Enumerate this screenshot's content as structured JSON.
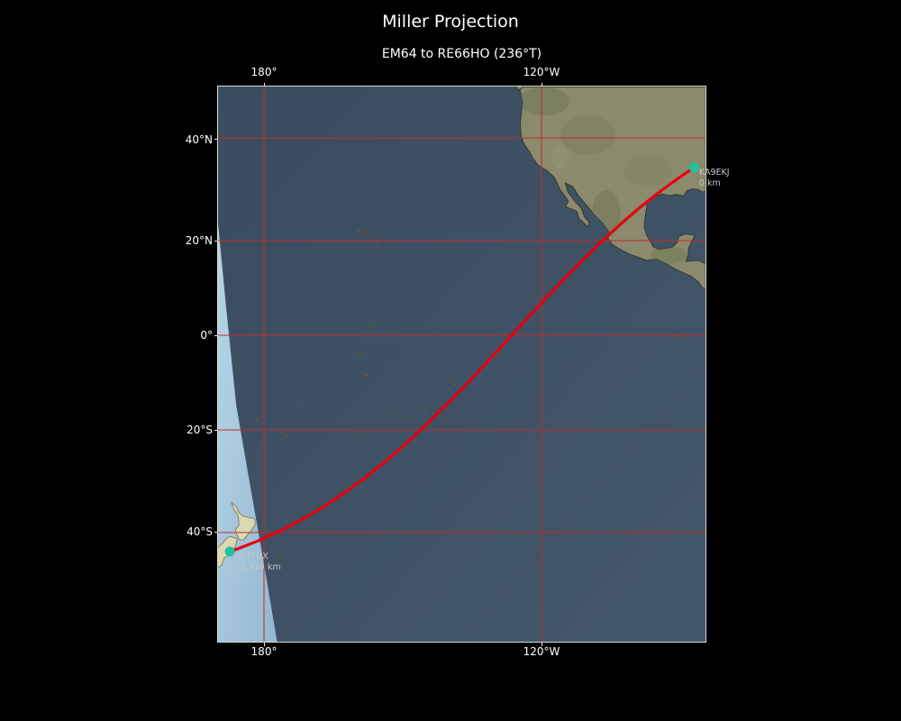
{
  "figure": {
    "title": "Miller Projection",
    "subtitle": "EM64 to RE66HO (236°T)"
  },
  "chart_data": {
    "type": "map",
    "projection": "Miller",
    "extent_lon_deg": [
      170.1,
      -84.5
    ],
    "extent_lat_deg": [
      -58.3,
      48.9
    ],
    "grid_lons": [
      -180,
      -120
    ],
    "grid_lats": [
      40,
      20,
      0,
      -20,
      -40
    ],
    "xtick_labels": [
      "180°",
      "120°W"
    ],
    "ytick_labels": [
      "40°N",
      "20°N",
      "0°",
      "20°S",
      "40°S"
    ],
    "route": {
      "origin": {
        "callsign": "KA9EKJ",
        "distance_label": "0 km",
        "lat": 34.5,
        "lon": -87.0
      },
      "destination": {
        "callsign": "ZL3TUX",
        "distance_label": "13,310 km",
        "lat": -43.4,
        "lon": 172.62
      }
    },
    "basemap": {
      "terminator_day_edge": [
        [
          23.1,
          170.1
        ],
        [
          4.2,
          172.0
        ],
        [
          -14.9,
          174.0
        ],
        [
          -29.6,
          176.7
        ],
        [
          -44.7,
          179.8
        ],
        [
          -58.3,
          -177.1
        ]
      ],
      "land_night": {
        "north_america": [
          [
            48.9,
            -84.5
          ],
          [
            48.9,
            -124.8
          ],
          [
            46.3,
            -124.1
          ],
          [
            42.8,
            -124.6
          ],
          [
            40.3,
            -124.4
          ],
          [
            38.9,
            -123.8
          ],
          [
            37.5,
            -122.6
          ],
          [
            36.3,
            -121.9
          ],
          [
            34.9,
            -120.7
          ],
          [
            34.0,
            -118.9
          ],
          [
            32.6,
            -117.2
          ],
          [
            30.3,
            -116.0
          ],
          [
            28.0,
            -114.2
          ],
          [
            26.9,
            -114.8
          ],
          [
            26.0,
            -112.4
          ],
          [
            24.5,
            -111.9
          ],
          [
            22.9,
            -110.0
          ],
          [
            23.6,
            -109.6
          ],
          [
            24.9,
            -110.7
          ],
          [
            26.6,
            -111.4
          ],
          [
            28.1,
            -112.9
          ],
          [
            29.8,
            -114.3
          ],
          [
            31.6,
            -114.9
          ],
          [
            30.8,
            -113.2
          ],
          [
            28.9,
            -111.9
          ],
          [
            27.2,
            -110.3
          ],
          [
            25.3,
            -108.6
          ],
          [
            23.5,
            -106.7
          ],
          [
            21.6,
            -105.3
          ],
          [
            20.4,
            -105.6
          ],
          [
            19.2,
            -104.7
          ],
          [
            18.1,
            -102.8
          ],
          [
            17.2,
            -101.0
          ],
          [
            16.6,
            -99.2
          ],
          [
            15.9,
            -97.3
          ],
          [
            16.2,
            -95.1
          ],
          [
            15.2,
            -93.0
          ],
          [
            14.3,
            -91.5
          ],
          [
            13.5,
            -89.8
          ],
          [
            12.6,
            -87.7
          ],
          [
            11.4,
            -86.1
          ],
          [
            10.2,
            -85.2
          ],
          [
            9.6,
            -84.5
          ],
          [
            15.2,
            -84.5
          ],
          [
            15.9,
            -85.9
          ],
          [
            15.8,
            -87.8
          ],
          [
            15.7,
            -88.8
          ],
          [
            17.0,
            -88.3
          ],
          [
            18.4,
            -88.2
          ],
          [
            19.8,
            -87.5
          ],
          [
            21.1,
            -86.8
          ],
          [
            21.4,
            -88.8
          ],
          [
            20.9,
            -90.3
          ],
          [
            19.6,
            -90.7
          ],
          [
            18.6,
            -91.8
          ],
          [
            18.4,
            -93.2
          ],
          [
            18.2,
            -94.7
          ],
          [
            18.8,
            -95.9
          ],
          [
            19.8,
            -96.4
          ],
          [
            21.1,
            -97.2
          ],
          [
            22.8,
            -97.8
          ],
          [
            24.8,
            -97.6
          ],
          [
            26.5,
            -97.3
          ],
          [
            27.9,
            -97.1
          ],
          [
            28.9,
            -95.4
          ],
          [
            29.4,
            -94.0
          ],
          [
            29.1,
            -92.3
          ],
          [
            29.3,
            -90.8
          ],
          [
            29.0,
            -89.3
          ],
          [
            30.1,
            -88.5
          ],
          [
            30.4,
            -87.3
          ],
          [
            30.3,
            -86.2
          ],
          [
            29.8,
            -85.3
          ],
          [
            29.9,
            -84.5
          ]
        ],
        "vancouver_island": [
          [
            50.5,
            -126.6
          ],
          [
            49.2,
            -126.0
          ],
          [
            48.4,
            -124.8
          ],
          [
            49.0,
            -123.8
          ],
          [
            50.1,
            -124.8
          ]
        ]
      },
      "land_day": {
        "nz_north_island": [
          [
            -34.4,
            172.9
          ],
          [
            -35.2,
            174.0
          ],
          [
            -36.3,
            174.5
          ],
          [
            -37.0,
            175.6
          ],
          [
            -37.5,
            178.0
          ],
          [
            -38.6,
            178.1
          ],
          [
            -39.8,
            177.1
          ],
          [
            -41.4,
            175.5
          ],
          [
            -41.3,
            174.7
          ],
          [
            -40.3,
            174.1
          ],
          [
            -39.5,
            173.8
          ],
          [
            -38.6,
            174.6
          ],
          [
            -36.9,
            174.4
          ],
          [
            -35.6,
            173.4
          ]
        ],
        "nz_south_island": [
          [
            -40.7,
            172.7
          ],
          [
            -41.1,
            174.2
          ],
          [
            -42.3,
            173.9
          ],
          [
            -43.7,
            173.1
          ],
          [
            -44.5,
            171.4
          ],
          [
            -45.8,
            170.8
          ],
          [
            -46.6,
            169.3
          ],
          [
            -46.3,
            167.0
          ],
          [
            -45.2,
            166.7
          ],
          [
            -43.8,
            168.3
          ],
          [
            -42.3,
            170.6
          ],
          [
            -41.0,
            172.0
          ]
        ]
      },
      "islands": [
        [
          19.7,
          -155.4
        ],
        [
          20.8,
          -156.3
        ],
        [
          21.4,
          -158.0
        ],
        [
          22.1,
          -159.5
        ],
        [
          1.9,
          -157.4
        ],
        [
          -3.9,
          -159.3
        ],
        [
          -8.5,
          -157.9
        ],
        [
          -9.4,
          -139.5
        ],
        [
          -10.5,
          -138.7
        ],
        [
          -14.9,
          -141.2
        ],
        [
          -16.5,
          -143.5
        ],
        [
          -17.9,
          -140.8
        ],
        [
          -15.8,
          -145.1
        ],
        [
          -17.6,
          -149.5
        ],
        [
          -16.5,
          -151.7
        ],
        [
          -21.2,
          -159.8
        ],
        [
          -13.8,
          -171.9
        ],
        [
          -17.8,
          178.5
        ],
        [
          -21.1,
          -175.2
        ],
        [
          0.2,
          -90.8
        ],
        [
          -0.8,
          -89.5
        ],
        [
          19.3,
          -111.5
        ],
        [
          -44.0,
          -176.5
        ]
      ],
      "land_shading": [
        [
          46.5,
          -119.5,
          28,
          16,
          "#66734f",
          0.45
        ],
        [
          40.5,
          -110.0,
          30,
          22,
          "#77765a",
          0.4
        ],
        [
          34.0,
          -97.0,
          26,
          18,
          "#7d8260",
          0.35
        ],
        [
          25.5,
          -106.0,
          16,
          26,
          "#6e6f4f",
          0.45
        ],
        [
          17.0,
          -92.5,
          20,
          10,
          "#6b7a52",
          0.5
        ],
        [
          36.5,
          -116.0,
          10,
          14,
          "#9a9377",
          0.5
        ]
      ]
    }
  },
  "colors": {
    "background": "#000000",
    "ocean_night": "#3d5164",
    "ocean_day": "#a9cade",
    "land_night": "#8b8a6d",
    "land_day": "#dbd9b4",
    "coastline": "#33382f",
    "gridline": "#c62828",
    "route": "#e8000d",
    "marker": "#20c29a",
    "annotation_text": "#c6c6c6",
    "tick_text": "#ffffff"
  }
}
